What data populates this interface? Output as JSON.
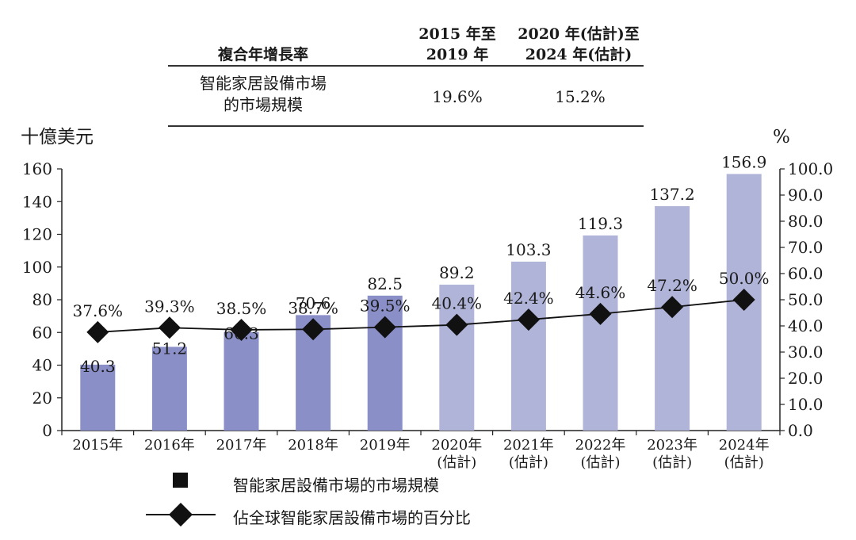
{
  "cagr_table": {
    "title": "複合年增長率",
    "col1_line1": "2015 年至",
    "col1_line2": "2019 年",
    "col2_line1": "2020 年(估計)至",
    "col2_line2": "2024 年(估計)",
    "row_label_line1": "智能家居設備市場",
    "row_label_line2": "的市場規模",
    "row_val1": "19.6%",
    "row_val2": "15.2%"
  },
  "chart_data": {
    "type": "bar",
    "categories": [
      "2015年",
      "2016年",
      "2017年",
      "2018年",
      "2019年",
      "2020年",
      "2021年",
      "2022年",
      "2023年",
      "2024年"
    ],
    "category_sub": [
      "",
      "",
      "",
      "",
      "",
      "(估計)",
      "(估計)",
      "(估計)",
      "(估計)",
      "(估計)"
    ],
    "series": [
      {
        "name": "智能家居設備市場的市場規模",
        "axis": "left",
        "type": "bar",
        "values": [
          40.3,
          51.2,
          60.3,
          70.6,
          82.5,
          89.2,
          103.3,
          119.3,
          137.2,
          156.9
        ],
        "labels": [
          "40.3",
          "51.2",
          "60.3",
          "70.6",
          "82.5",
          "89.2",
          "103.3",
          "119.3",
          "137.2",
          "156.9"
        ]
      },
      {
        "name": "佔全球智能家居設備市場的百分比",
        "axis": "right",
        "type": "line",
        "values": [
          37.6,
          39.3,
          38.5,
          38.7,
          39.5,
          40.4,
          42.4,
          44.6,
          47.2,
          50.0
        ],
        "labels": [
          "37.6%",
          "39.3%",
          "38.5%",
          "38.7%",
          "39.5%",
          "40.4%",
          "42.4%",
          "44.6%",
          "47.2%",
          "50.0%"
        ]
      }
    ],
    "ylabel": "十億美元",
    "y2label": "%",
    "ylim": [
      0,
      160
    ],
    "y2lim": [
      0,
      100
    ],
    "yticks": [
      "0",
      "20",
      "40",
      "60",
      "80",
      "100",
      "120",
      "140",
      "160"
    ],
    "y2ticks": [
      "0.0",
      "10.0",
      "20.0",
      "30.0",
      "40.0",
      "50.0",
      "60.0",
      "70.0",
      "80.0",
      "90.0",
      "100.0"
    ],
    "colors": {
      "historical": "#8a8fc8",
      "forecast": "#b0b4d8",
      "line": "#111111"
    }
  }
}
